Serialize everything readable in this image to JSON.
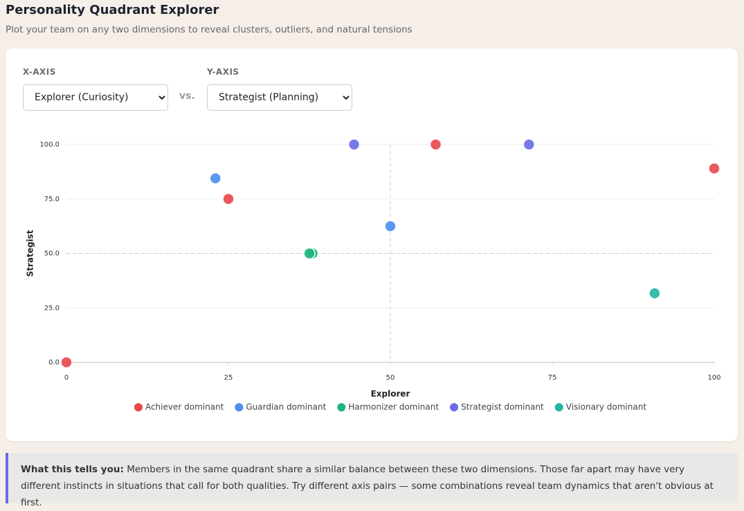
{
  "header": {
    "title": "Personality Quadrant Explorer",
    "subtitle": "Plot your team on any two dimensions to reveal clusters, outliers, and natural tensions"
  },
  "controls": {
    "x_label": "X-AXIS",
    "x_value": "Explorer (Curiosity)",
    "vs": "vs.",
    "y_label": "Y-AXIS",
    "y_value": "Strategist (Planning)"
  },
  "chart_data": {
    "type": "scatter",
    "x_label": "Explorer",
    "y_label": "Strategist",
    "xlim": [
      0,
      100
    ],
    "ylim": [
      0,
      100
    ],
    "xticks": [
      0,
      25,
      50,
      75,
      100
    ],
    "yticks": [
      {
        "value": 0,
        "label": "0.0"
      },
      {
        "value": 25,
        "label": "25.0"
      },
      {
        "value": 50,
        "label": "50.0"
      },
      {
        "value": 75,
        "label": "75.0"
      },
      {
        "value": 100,
        "label": "100.0"
      }
    ],
    "grid": true,
    "quadrant_x": 50,
    "quadrant_y": 50,
    "legend": "bottom",
    "series": [
      {
        "name": "Achiever dominant",
        "color": "#e8474c",
        "x": [
          0,
          25,
          57,
          100
        ],
        "values": [
          0,
          75,
          100,
          89
        ]
      },
      {
        "name": "Guardian dominant",
        "color": "#4a8ef0",
        "x": [
          23,
          50
        ],
        "values": [
          84.5,
          62.5
        ]
      },
      {
        "name": "Harmonizer dominant",
        "color": "#1db67a",
        "x": [
          38,
          37.5
        ],
        "values": [
          50,
          50
        ]
      },
      {
        "name": "Strategist dominant",
        "color": "#6a6ae8",
        "x": [
          44.4,
          71.4
        ],
        "values": [
          100,
          100
        ]
      },
      {
        "name": "Visionary dominant",
        "color": "#22b5a2",
        "x": [
          90.8
        ],
        "values": [
          31.7
        ]
      }
    ]
  },
  "callout": {
    "lead": "What this tells you:",
    "text": "Members in the same quadrant share a similar balance between these two dimensions. Those far apart may have very different instincts in situations that call for both qualities. Try different axis pairs — some combinations reveal team dynamics that aren't obvious at first."
  }
}
